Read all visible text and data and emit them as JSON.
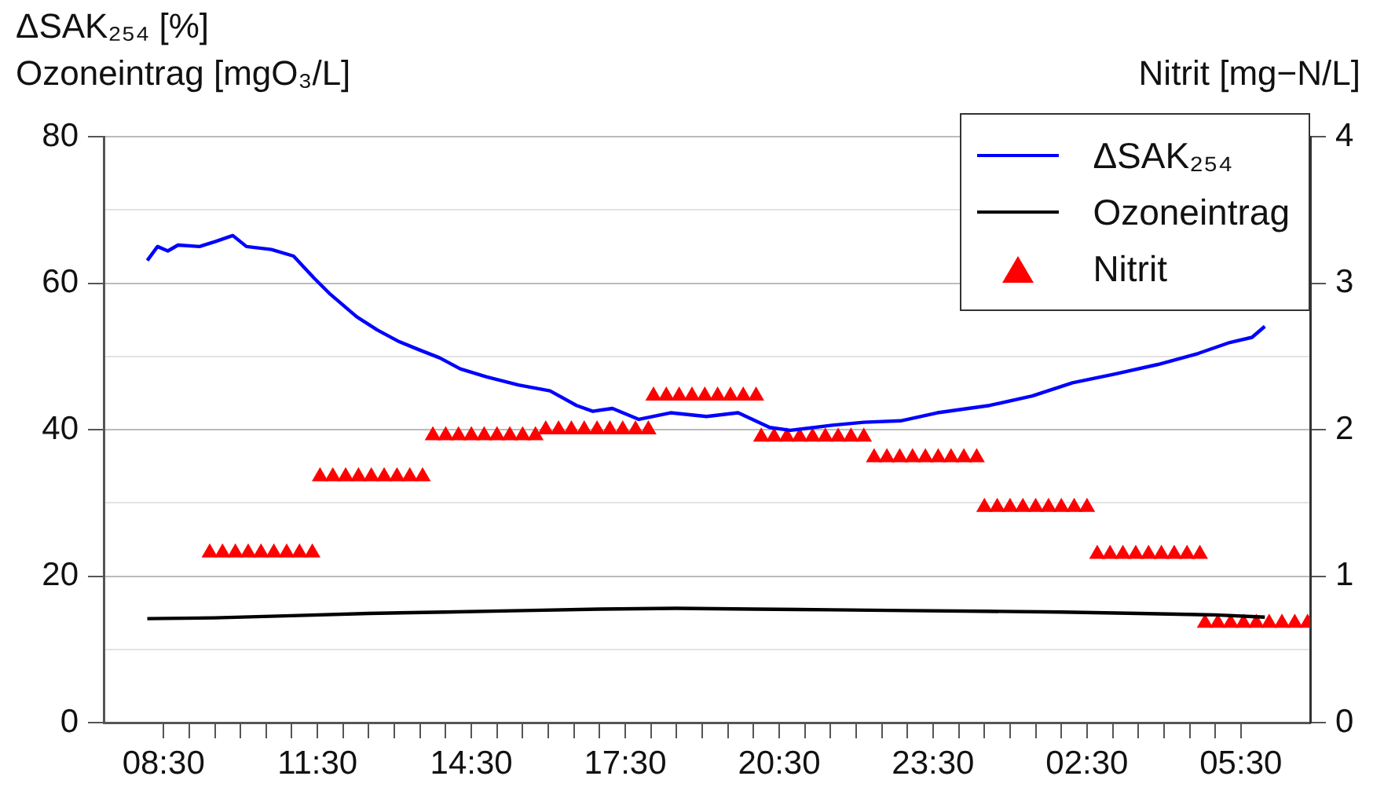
{
  "chart_data": {
    "type": "line",
    "ylabel": "ΔSAK₂₅₄ [%]\nOzoneintrag [mgO₃/L]",
    "y2label": "Nitrit [mg−N/L]",
    "xlim": [
      "--01-01T07:20",
      "--01-02T06:51"
    ],
    "xticks": [
      {
        "value": "--01-01T08:30",
        "label": "08:30"
      },
      {
        "value": "--01-01T09:00",
        "label": null
      },
      {
        "value": "--01-01T09:30",
        "label": null
      },
      {
        "value": "--01-01T10:00",
        "label": null
      },
      {
        "value": "--01-01T10:30",
        "label": null
      },
      {
        "value": "--01-01T11:00",
        "label": null
      },
      {
        "value": "--01-01T11:30",
        "label": "11:30"
      },
      {
        "value": "--01-01T12:00",
        "label": null
      },
      {
        "value": "--01-01T12:30",
        "label": null
      },
      {
        "value": "--01-01T13:00",
        "label": null
      },
      {
        "value": "--01-01T13:30",
        "label": null
      },
      {
        "value": "--01-01T14:00",
        "label": null
      },
      {
        "value": "--01-01T14:30",
        "label": "14:30"
      },
      {
        "value": "--01-01T15:00",
        "label": null
      },
      {
        "value": "--01-01T15:30",
        "label": null
      },
      {
        "value": "--01-01T16:00",
        "label": null
      },
      {
        "value": "--01-01T16:30",
        "label": null
      },
      {
        "value": "--01-01T17:00",
        "label": null
      },
      {
        "value": "--01-01T17:30",
        "label": "17:30"
      },
      {
        "value": "--01-01T18:00",
        "label": null
      },
      {
        "value": "--01-01T18:30",
        "label": null
      },
      {
        "value": "--01-01T19:00",
        "label": null
      },
      {
        "value": "--01-01T19:30",
        "label": null
      },
      {
        "value": "--01-01T20:00",
        "label": null
      },
      {
        "value": "--01-01T20:30",
        "label": "20:30"
      },
      {
        "value": "--01-01T21:00",
        "label": null
      },
      {
        "value": "--01-01T21:30",
        "label": null
      },
      {
        "value": "--01-01T22:00",
        "label": null
      },
      {
        "value": "--01-01T22:30",
        "label": null
      },
      {
        "value": "--01-01T23:00",
        "label": null
      },
      {
        "value": "--01-01T23:30",
        "label": "23:30"
      },
      {
        "value": "--01-02T00:00",
        "label": null
      },
      {
        "value": "--01-02T00:30",
        "label": null
      },
      {
        "value": "--01-02T01:00",
        "label": null
      },
      {
        "value": "--01-02T01:30",
        "label": null
      },
      {
        "value": "--01-02T02:00",
        "label": null
      },
      {
        "value": "--01-02T02:30",
        "label": "02:30"
      },
      {
        "value": "--01-02T03:00",
        "label": null
      },
      {
        "value": "--01-02T03:30",
        "label": null
      },
      {
        "value": "--01-02T04:00",
        "label": null
      },
      {
        "value": "--01-02T04:30",
        "label": null
      },
      {
        "value": "--01-02T05:00",
        "label": null
      },
      {
        "value": "--01-02T05:30",
        "label": "05:30"
      }
    ],
    "ylim": [
      0,
      80
    ],
    "yticks": [
      0,
      {
        "value": 10,
        "label": null
      },
      20,
      {
        "value": 30,
        "label": null
      },
      40,
      {
        "value": 50,
        "label": null
      },
      60,
      {
        "value": 70,
        "label": null
      },
      80
    ],
    "y2lim": [
      0,
      4
    ],
    "y2ticks": [
      0,
      1,
      2,
      3,
      4
    ],
    "grid": "y",
    "legend": "top right",
    "marker": "none",
    "series": [
      {
        "name": "ΔSAK₂₅₄",
        "color": "#0000ff",
        "x": [
          "--01-01T08:11",
          "--01-01T08:23",
          "--01-01T08:35",
          "--01-01T08:47",
          "--01-01T09:12",
          "--01-01T09:31",
          "--01-01T09:51",
          "--01-01T10:07",
          "--01-01T10:36",
          "--01-01T11:02",
          "--01-01T11:26",
          "--01-01T11:44",
          "--01-01T12:16",
          "--01-01T12:40",
          "--01-01T13:04",
          "--01-01T13:29",
          "--01-01T13:53",
          "--01-01T14:17",
          "--01-01T14:48",
          "--01-01T15:25",
          "--01-01T16:02",
          "--01-01T16:33",
          "--01-01T16:52",
          "--01-01T17:15",
          "--01-01T17:46",
          "--01-01T18:23",
          "--01-01T19:05",
          "--01-01T19:42",
          "--01-01T20:19",
          "--01-01T20:43",
          "--01-01T21:32",
          "--01-01T22:09",
          "--01-01T22:52",
          "--01-01T23:35",
          "--01-02T00:36",
          "--01-02T01:26",
          "--01-02T02:13",
          "--01-02T03:03",
          "--01-02T03:53",
          "--01-02T04:40",
          "--01-02T05:17",
          "--01-02T05:43",
          "--01-02T05:58"
        ],
        "values": [
          63.1,
          65.0,
          64.4,
          65.2,
          65.0,
          65.7,
          66.5,
          65.0,
          64.6,
          63.7,
          60.7,
          58.6,
          55.4,
          53.6,
          52.1,
          50.9,
          49.8,
          48.3,
          47.2,
          46.1,
          45.3,
          43.3,
          42.5,
          42.9,
          41.4,
          42.3,
          41.8,
          42.3,
          40.3,
          39.9,
          40.6,
          41.0,
          41.2,
          42.3,
          43.3,
          44.6,
          46.4,
          47.6,
          48.9,
          50.4,
          51.9,
          52.6,
          54.1
        ]
      },
      {
        "name": "Ozoneintrag",
        "color": "#000000",
        "x": [
          "--01-01T08:11",
          "--01-01T09:30",
          "--01-01T11:00",
          "--01-01T12:30",
          "--01-01T14:00",
          "--01-01T15:30",
          "--01-01T17:00",
          "--01-01T18:30",
          "--01-01T20:00",
          "--01-01T21:30",
          "--01-01T23:00",
          "--01-02T00:30",
          "--01-02T02:00",
          "--01-02T03:30",
          "--01-02T05:00",
          "--01-02T05:58"
        ],
        "values": [
          14.2,
          14.3,
          14.6,
          14.9,
          15.1,
          15.3,
          15.5,
          15.6,
          15.5,
          15.4,
          15.3,
          15.2,
          15.1,
          14.9,
          14.7,
          14.4
        ]
      },
      {
        "name": "Nitrit",
        "type": "scatter",
        "axis": "y2",
        "marker": "triangle",
        "color": "#ff0000",
        "x": [
          "--01-01T09:24",
          "--01-01T09:39",
          "--01-01T09:54",
          "--01-01T10:09",
          "--01-01T10:24",
          "--01-01T10:39",
          "--01-01T10:54",
          "--01-01T11:09",
          "--01-01T11:24",
          "--01-01T11:33",
          "--01-01T11:48",
          "--01-01T12:03",
          "--01-01T12:18",
          "--01-01T12:33",
          "--01-01T12:48",
          "--01-01T13:03",
          "--01-01T13:18",
          "--01-01T13:33",
          "--01-01T13:45",
          "--01-01T14:00",
          "--01-01T14:15",
          "--01-01T14:30",
          "--01-01T14:45",
          "--01-01T15:00",
          "--01-01T15:15",
          "--01-01T15:30",
          "--01-01T15:45",
          "--01-01T15:57",
          "--01-01T16:12",
          "--01-01T16:27",
          "--01-01T16:42",
          "--01-01T16:57",
          "--01-01T17:12",
          "--01-01T17:27",
          "--01-01T17:42",
          "--01-01T17:57",
          "--01-01T18:03",
          "--01-01T18:18",
          "--01-01T18:33",
          "--01-01T18:48",
          "--01-01T19:03",
          "--01-01T19:18",
          "--01-01T19:33",
          "--01-01T19:48",
          "--01-01T20:03",
          "--01-01T20:09",
          "--01-01T20:24",
          "--01-01T20:39",
          "--01-01T20:54",
          "--01-01T21:09",
          "--01-01T21:24",
          "--01-01T21:39",
          "--01-01T21:54",
          "--01-01T22:09",
          "--01-01T22:21",
          "--01-01T22:36",
          "--01-01T22:51",
          "--01-01T23:06",
          "--01-01T23:21",
          "--01-01T23:36",
          "--01-01T23:51",
          "--01-02T00:06",
          "--01-02T00:21",
          "--01-02T00:30",
          "--01-02T00:45",
          "--01-02T01:00",
          "--01-02T01:15",
          "--01-02T01:30",
          "--01-02T01:45",
          "--01-02T02:00",
          "--01-02T02:15",
          "--01-02T02:30",
          "--01-02T02:42",
          "--01-02T02:57",
          "--01-02T03:12",
          "--01-02T03:27",
          "--01-02T03:42",
          "--01-02T03:57",
          "--01-02T04:12",
          "--01-02T04:27",
          "--01-02T04:42",
          "--01-02T04:48",
          "--01-02T05:03",
          "--01-02T05:18",
          "--01-02T05:33",
          "--01-02T05:48",
          "--01-02T06:03",
          "--01-02T06:18",
          "--01-02T06:33",
          "--01-02T06:48"
        ],
        "values": [
          1.16,
          1.16,
          1.16,
          1.16,
          1.16,
          1.16,
          1.16,
          1.16,
          1.16,
          1.68,
          1.68,
          1.68,
          1.68,
          1.68,
          1.68,
          1.68,
          1.68,
          1.68,
          1.96,
          1.96,
          1.96,
          1.96,
          1.96,
          1.96,
          1.96,
          1.96,
          1.96,
          2.0,
          2.0,
          2.0,
          2.0,
          2.0,
          2.0,
          2.0,
          2.0,
          2.0,
          2.23,
          2.23,
          2.23,
          2.23,
          2.23,
          2.23,
          2.23,
          2.23,
          2.23,
          1.95,
          1.95,
          1.95,
          1.95,
          1.95,
          1.95,
          1.95,
          1.95,
          1.95,
          1.81,
          1.81,
          1.81,
          1.81,
          1.81,
          1.81,
          1.81,
          1.81,
          1.81,
          1.47,
          1.47,
          1.47,
          1.47,
          1.47,
          1.47,
          1.47,
          1.47,
          1.47,
          1.15,
          1.15,
          1.15,
          1.15,
          1.15,
          1.15,
          1.15,
          1.15,
          1.15,
          0.68,
          0.68,
          0.68,
          0.68,
          0.68,
          0.68,
          0.68,
          0.68,
          0.68
        ]
      }
    ]
  }
}
